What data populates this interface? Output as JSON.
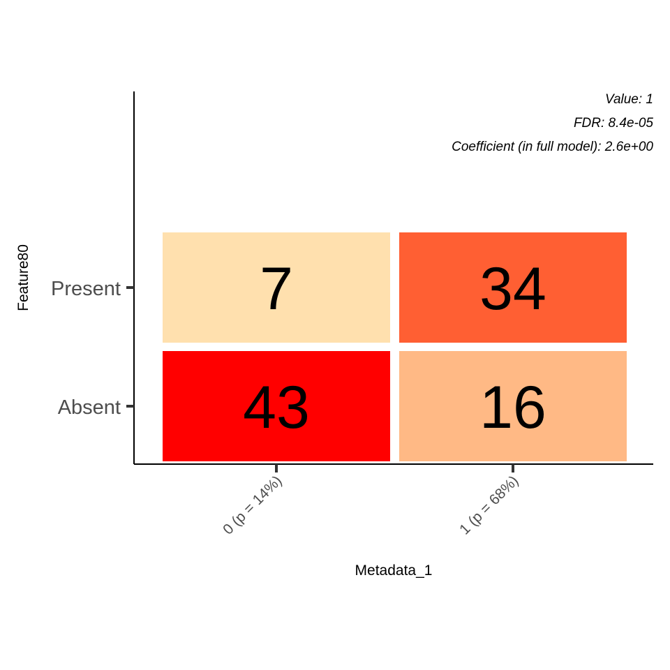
{
  "chart_data": {
    "type": "heatmap",
    "xlabel": "Metadata_1",
    "ylabel": "Feature80",
    "x_categories": [
      "0 (p = 14%)",
      "1 (p = 68%)"
    ],
    "y_categories": [
      "Absent",
      "Present"
    ],
    "cells": [
      {
        "x": "0 (p = 14%)",
        "y": "Present",
        "value": 7,
        "color": "#FFE0AE"
      },
      {
        "x": "1 (p = 68%)",
        "y": "Present",
        "value": 34,
        "color": "#FF5F33"
      },
      {
        "x": "0 (p = 14%)",
        "y": "Absent",
        "value": 43,
        "color": "#FF0000"
      },
      {
        "x": "1 (p = 68%)",
        "y": "Absent",
        "value": 16,
        "color": "#FFB985"
      }
    ],
    "annotations": [
      "Value: 1",
      "FDR: 8.4e-05",
      "Coefficient (in full model): 2.6e+00"
    ],
    "legend": "none",
    "grid": false
  }
}
